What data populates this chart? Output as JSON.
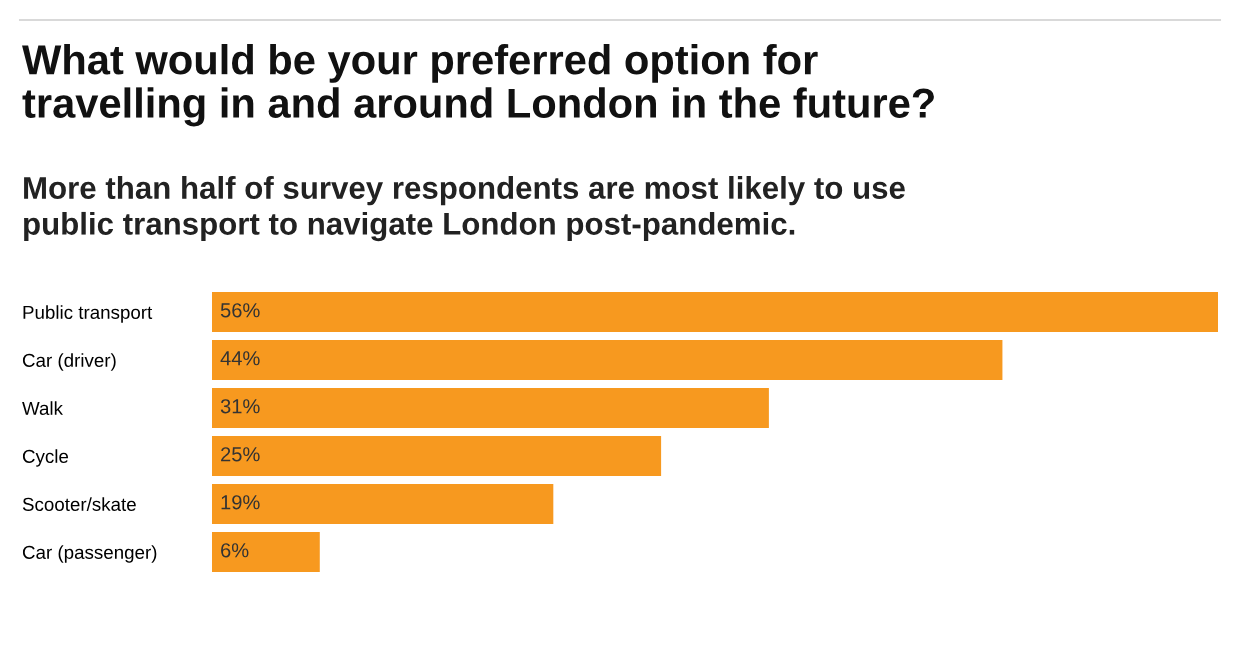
{
  "chart_data": {
    "type": "bar",
    "orientation": "horizontal",
    "title": "What would be your preferred option for\ntravelling in and around London in the future?",
    "subtitle": "More than half of survey respondents are most likely to use\npublic transport to navigate London post-pandemic.",
    "categories": [
      "Public transport",
      "Car (driver)",
      "Walk",
      "Cycle",
      "Scooter/skate",
      "Car (passenger)"
    ],
    "values": [
      56,
      44,
      31,
      25,
      19,
      6
    ],
    "value_labels": [
      "56%",
      "44%",
      "31%",
      "25%",
      "19%",
      "6%"
    ],
    "color": "#f7991f",
    "grid": false,
    "legend": false
  }
}
